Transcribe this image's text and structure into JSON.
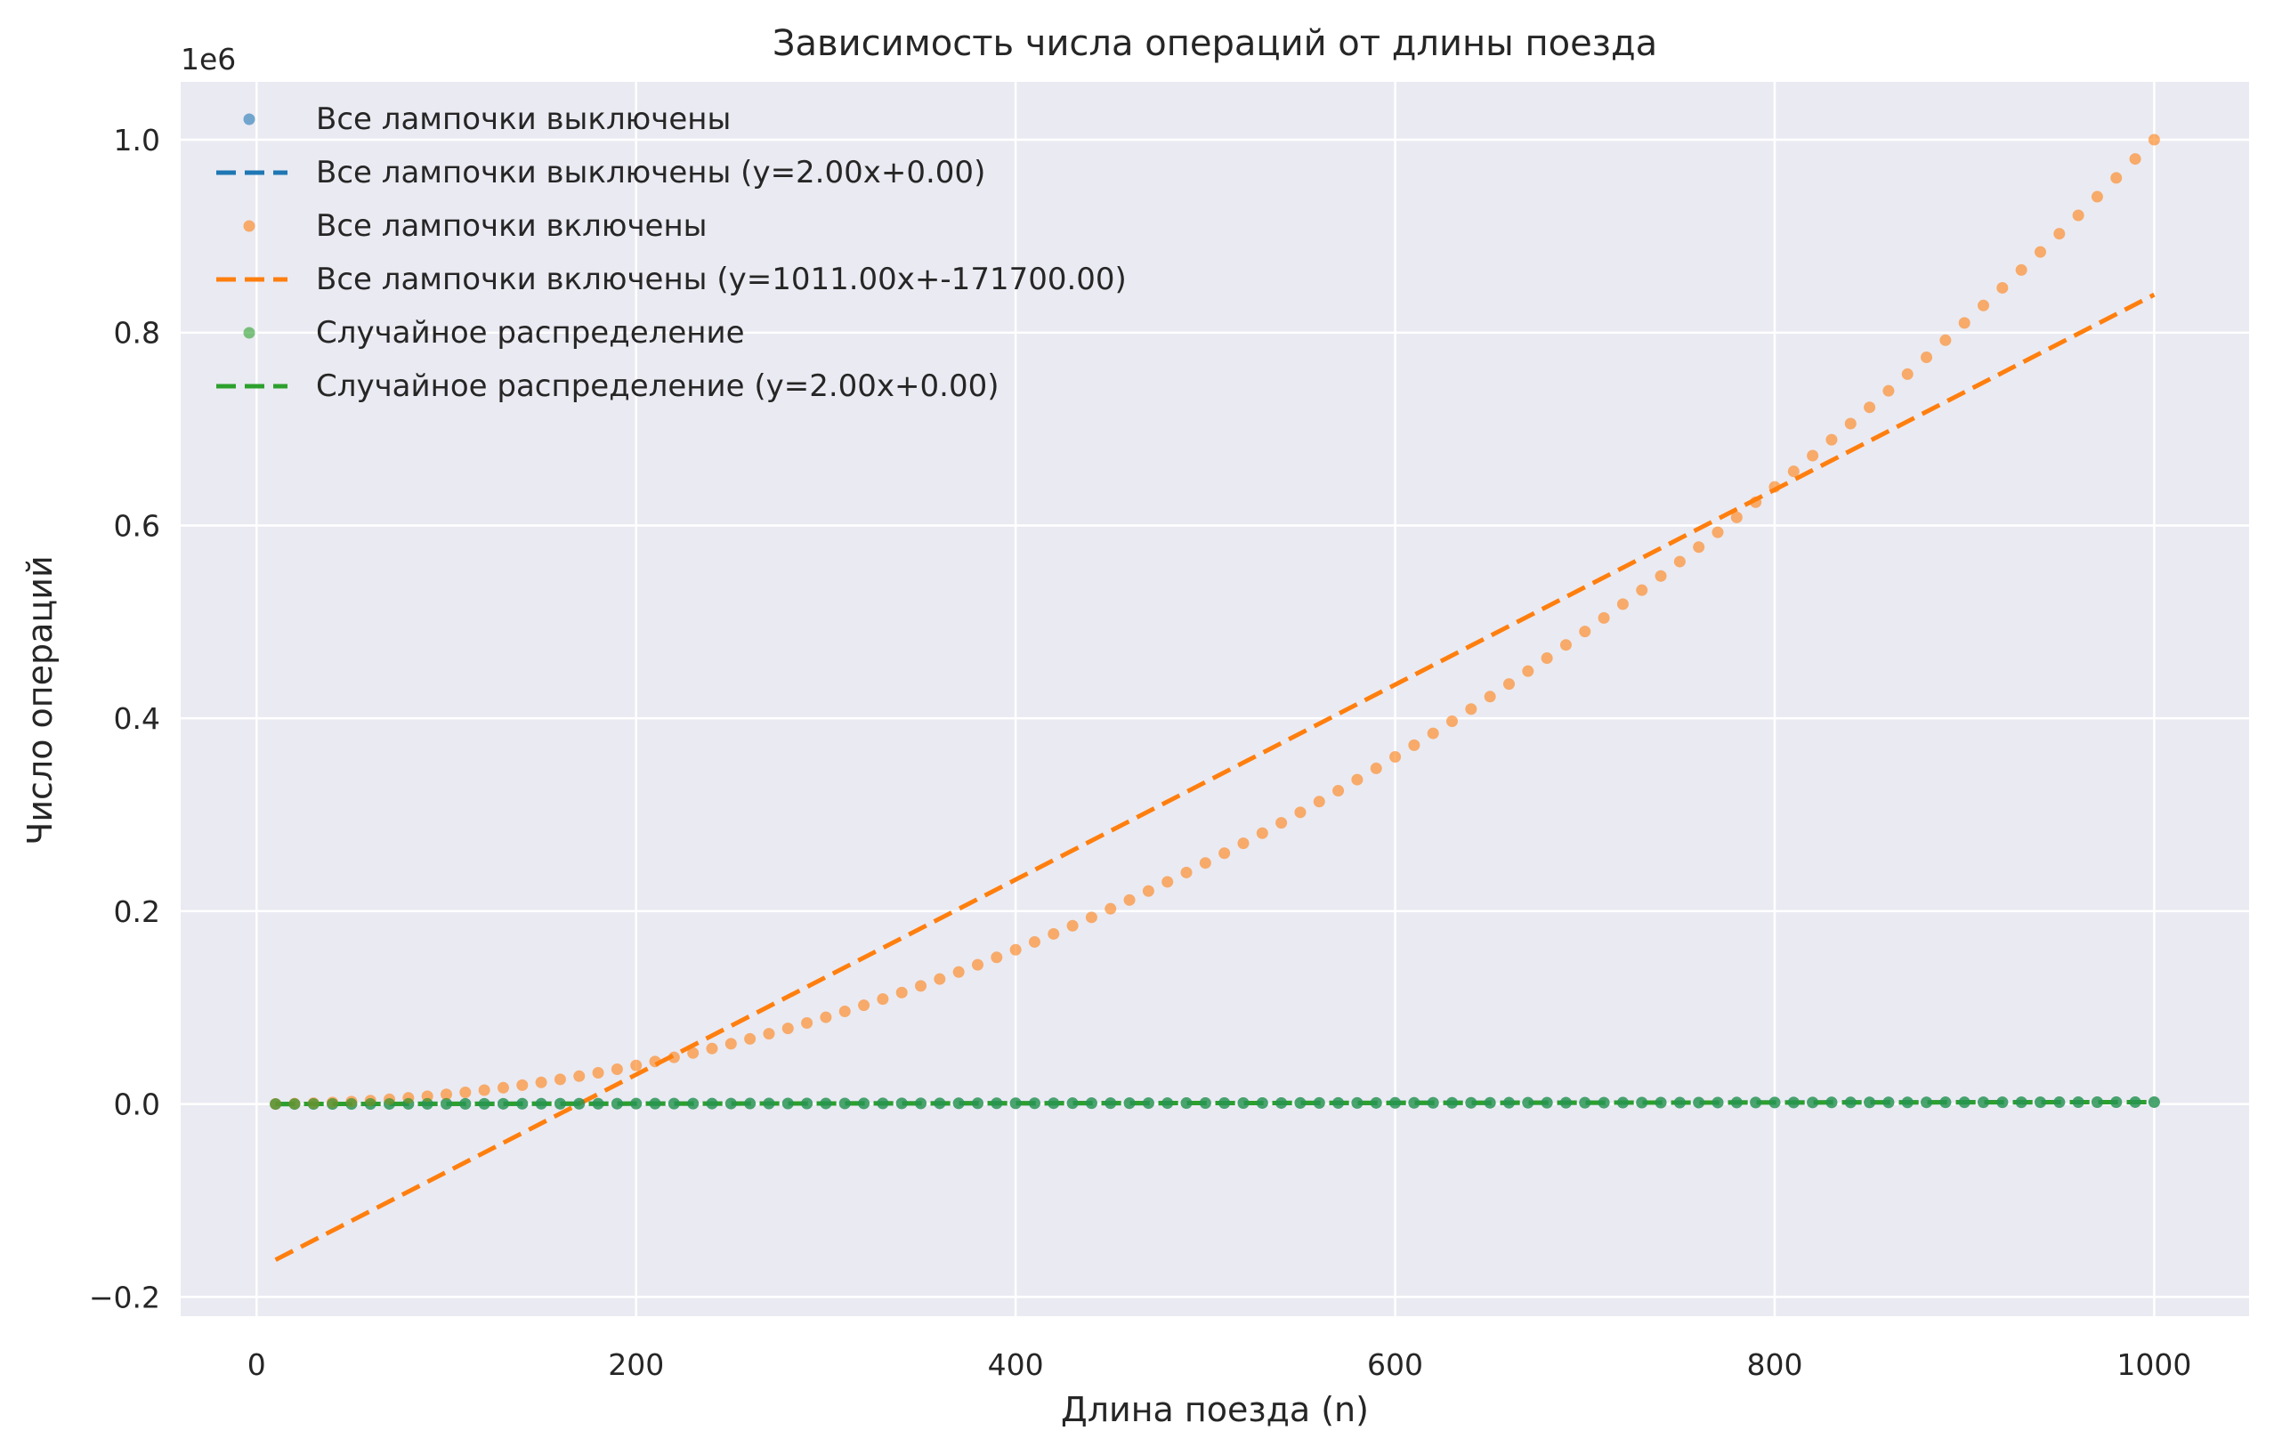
{
  "chart_data": {
    "type": "scatter",
    "title": "Зависимость числа операций от длины поезда",
    "xlabel": "Длина поезда (n)",
    "ylabel": "Число операций",
    "y_offset_label": "1e6",
    "xlim": [
      -40,
      1050
    ],
    "ylim": [
      -0.22,
      1.06
    ],
    "x_ticks": [
      0,
      200,
      400,
      600,
      800,
      1000
    ],
    "x_tick_labels": [
      "0",
      "200",
      "400",
      "600",
      "800",
      "1000"
    ],
    "y_ticks": [
      -0.2,
      0.0,
      0.2,
      0.4,
      0.6,
      0.8,
      1.0
    ],
    "y_tick_labels": [
      "−0.2",
      "0.0",
      "0.2",
      "0.4",
      "0.6",
      "0.8",
      "1.0"
    ],
    "grid": true,
    "legend_position": "top-left",
    "x_values": {
      "start": 10,
      "stop": 1000,
      "step": 10
    },
    "series": [
      {
        "name": "Все лампочки выключены",
        "kind": "scatter",
        "color": "#1f77b4",
        "formula": "2*n (×1e6 scale)",
        "points_scale": "y = 2n / 1e6"
      },
      {
        "name": "Все лампочки выключены (y=2.00x+0.00)",
        "kind": "line",
        "color": "#1f77b4",
        "slope": 2.0,
        "intercept": 0.0
      },
      {
        "name": "Все лампочки включены",
        "kind": "scatter",
        "color": "#ff7f0e",
        "points_scale": "y = n^2 / 1e6"
      },
      {
        "name": "Все лампочки включены (y=1011.00x+-171700.00)",
        "kind": "line",
        "color": "#ff7f0e",
        "slope": 1011.0,
        "intercept": -171700.0
      },
      {
        "name": "Случайное распределение",
        "kind": "scatter",
        "color": "#2ca02c",
        "points_scale": "y = 2n / 1e6"
      },
      {
        "name": "Случайное распределение (y=2.00x+0.00)",
        "kind": "line",
        "color": "#2ca02c",
        "slope": 2.0,
        "intercept": 0.0
      }
    ]
  }
}
